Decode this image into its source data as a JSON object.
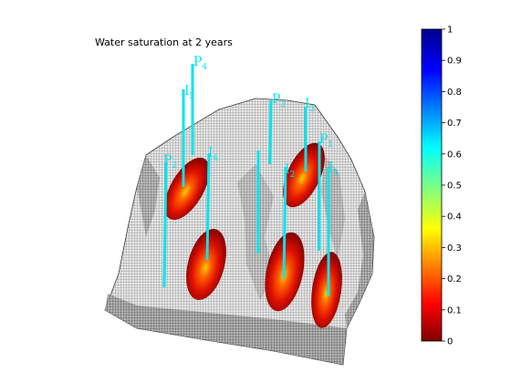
{
  "title": "Water saturation at 2 years",
  "colorbar": {
    "ticks": [
      "1",
      "0.9",
      "0.8",
      "0.7",
      "0.6",
      "0.5",
      "0.4",
      "0.3",
      "0.2",
      "0.1",
      "0"
    ],
    "colormap": "jet",
    "range": [
      0,
      1
    ]
  },
  "wells": [
    {
      "id": "P1",
      "label": "P",
      "sub": "1"
    },
    {
      "id": "P2",
      "label": "P",
      "sub": "2"
    },
    {
      "id": "P3",
      "label": "P",
      "sub": "3"
    },
    {
      "id": "P4",
      "label": "P",
      "sub": "4"
    },
    {
      "id": "I1",
      "label": "I",
      "sub": "1"
    },
    {
      "id": "I2",
      "label": "I",
      "sub": "2"
    },
    {
      "id": "I3",
      "label": "I",
      "sub": "3"
    },
    {
      "id": "I4",
      "label": "I",
      "sub": "4"
    },
    {
      "id": "I5",
      "label": "I",
      "sub": "5"
    }
  ],
  "colors": {
    "well": "#00e5ee",
    "grid_face": "#d9d9d9",
    "grid_line": "#5a5a5a"
  }
}
